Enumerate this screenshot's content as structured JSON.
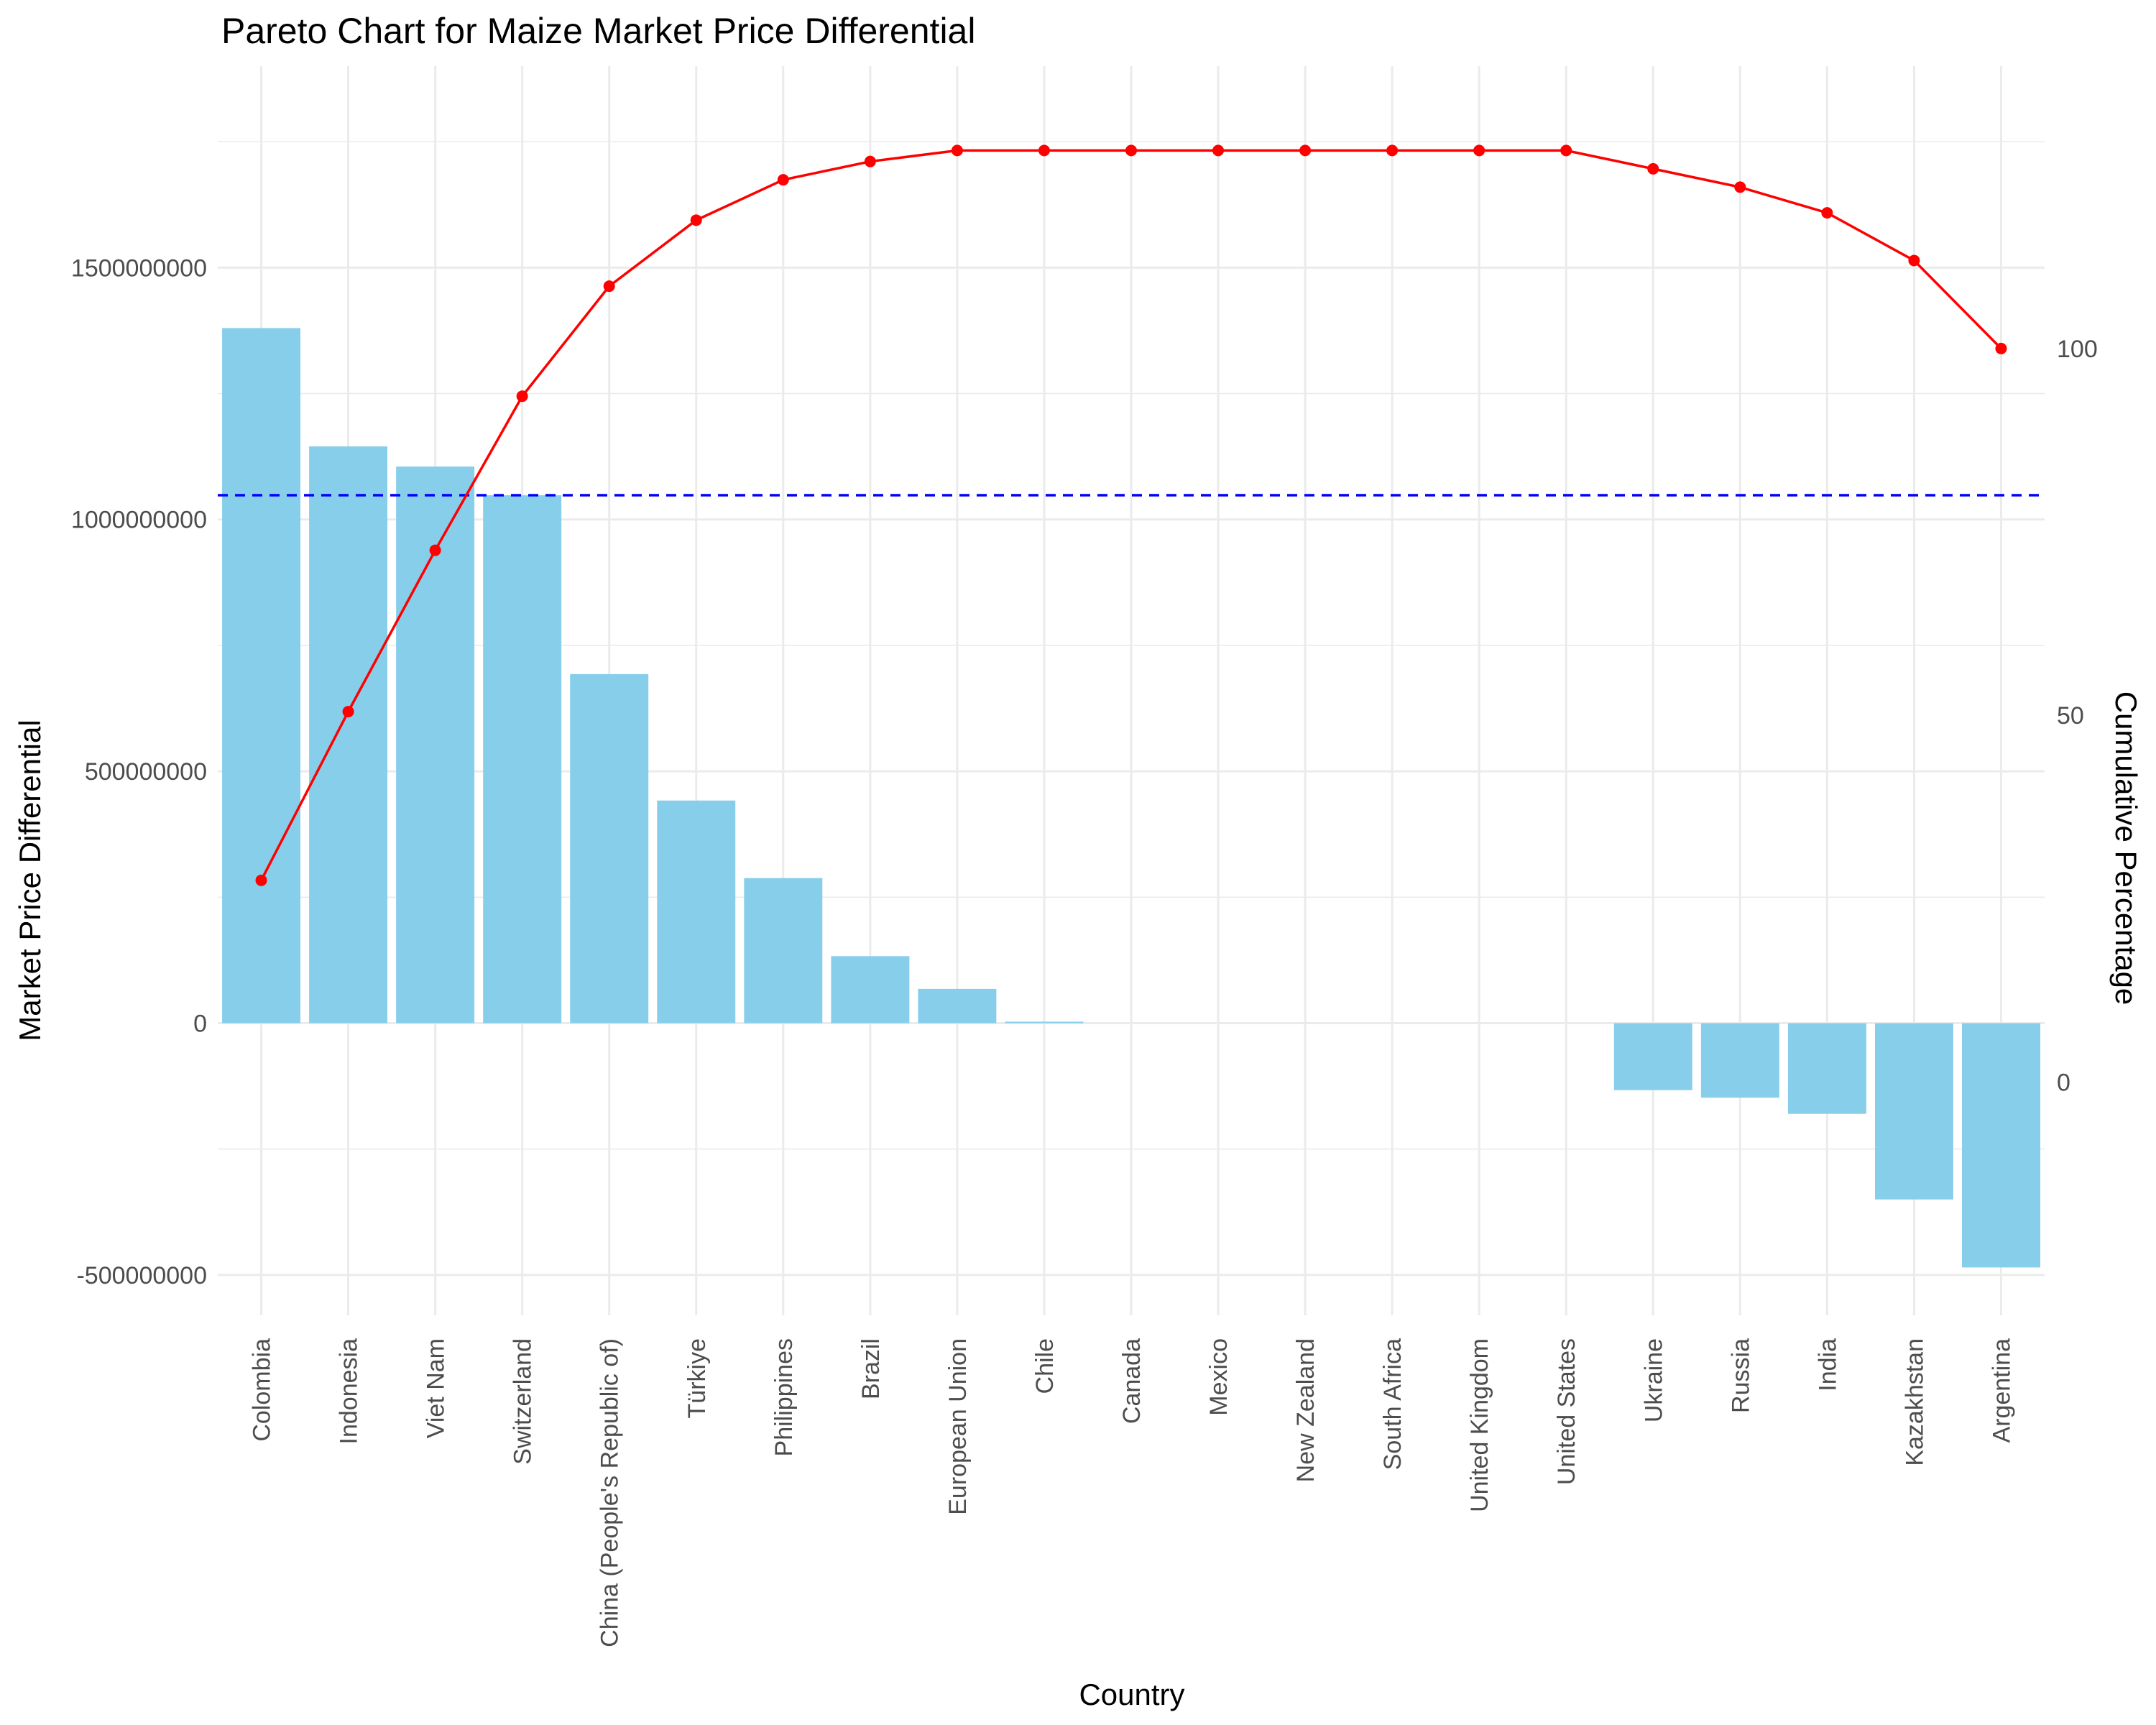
{
  "chart_data": {
    "type": "bar",
    "title": "Pareto Chart for Maize Market Price Differential",
    "xlabel": "Country",
    "ylabel": "Market Price Differential",
    "y2label": "Cumulative Percentage",
    "categories": [
      "Colombia",
      "Indonesia",
      "Viet Nam",
      "Switzerland",
      "China (People's Republic of)",
      "Türkiye",
      "Philippines",
      "Brazil",
      "European Union",
      "Chile",
      "Canada",
      "Mexico",
      "New Zealand",
      "South Africa",
      "United Kingdom",
      "United States",
      "Ukraine",
      "Russia",
      "India",
      "Kazakhstan",
      "Argentina"
    ],
    "series": [
      {
        "type": "bar",
        "axis": "left",
        "color": "#87CEEB",
        "values": [
          1380000000,
          1145000000,
          1105000000,
          1048000000,
          693000000,
          442000000,
          288000000,
          133000000,
          68000000,
          3000000,
          0,
          0,
          0,
          0,
          0,
          0,
          -133000000,
          -148000000,
          -180000000,
          -350000000,
          -485000000
        ]
      },
      {
        "type": "line",
        "axis": "right",
        "color": "#FF0000",
        "values": [
          27.5,
          50.5,
          72.5,
          93.5,
          108.5,
          117.5,
          123,
          125.5,
          127,
          127,
          127,
          127,
          127,
          127,
          127,
          127,
          124.5,
          122,
          118.5,
          112,
          100
        ]
      }
    ],
    "reference_line": {
      "axis": "right",
      "value": 80,
      "color": "#0000FF",
      "style": "dashed"
    },
    "ylim": [
      -580000000,
      1900000000
    ],
    "y2lim": [
      -31.8,
      138.5
    ],
    "yticks": [
      "-500000000",
      "0",
      "500000000",
      "1000000000",
      "1500000000"
    ],
    "y2ticks": [
      "0",
      "50",
      "100"
    ],
    "grid": true,
    "legend": "none"
  }
}
